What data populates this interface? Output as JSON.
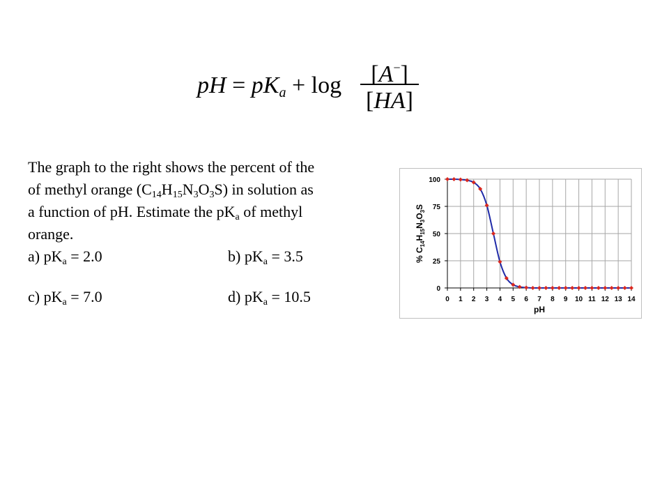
{
  "equation": {
    "lhs": "pH",
    "equals": "=",
    "pk": "pK",
    "pk_sub": "a",
    "plus": "+",
    "log": "log",
    "num_open": "[",
    "num_var": "A",
    "num_sup": "−",
    "num_close": "]",
    "den_open": "[",
    "den_var": "HA",
    "den_close": "]"
  },
  "question": {
    "l1": "The graph to the right shows the percent of the",
    "l2_a": "of methyl orange (C",
    "l2_s1": "14",
    "l2_b": "H",
    "l2_s2": "15",
    "l2_c": "N",
    "l2_s3": "3",
    "l2_d": "O",
    "l2_s4": "3",
    "l2_e": "S) in solution as",
    "l3_a": "a function of pH.   Estimate the pK",
    "l3_s": "a",
    "l3_b": " of methyl",
    "l4": "orange.",
    "options": {
      "a_pre": "a) pK",
      "a_sub": "a",
      "a_post": " = 2.0",
      "b_pre": "b) pK",
      "b_sub": "a",
      "b_post": " = 3.5",
      "c_pre": "c)   pK",
      "c_sub": "a",
      "c_post": " = 7.0",
      "d_pre": "d) pK",
      "d_sub": "a",
      "d_post": " = 10.5"
    }
  },
  "colors": {
    "curve": "#1f2aa8",
    "marker": "#d9281f",
    "grid": "#a6a6a6"
  },
  "chart_data": {
    "type": "line",
    "xlabel": "pH",
    "ylabel_parts": [
      "% C",
      "14",
      "H",
      "15",
      "N",
      "3",
      "O",
      "3",
      "S"
    ],
    "xlim": [
      0,
      14
    ],
    "ylim": [
      0,
      100
    ],
    "xticks": [
      0,
      1,
      2,
      3,
      4,
      5,
      6,
      7,
      8,
      9,
      10,
      11,
      12,
      13,
      14
    ],
    "yticks": [
      0,
      25,
      50,
      75,
      100
    ],
    "grid": true,
    "legend": "none",
    "series": [
      {
        "x": [
          0,
          0.5,
          1,
          1.5,
          2,
          2.5,
          3,
          3.5,
          4,
          4.5,
          5,
          5.5,
          6,
          6.5,
          7,
          7.5,
          8,
          8.5,
          9,
          9.5,
          10,
          10.5,
          11,
          11.5,
          12,
          12.5,
          13,
          13.5,
          14
        ],
        "y": [
          100,
          100,
          99.7,
          99,
          97,
          91,
          76,
          50,
          24,
          9,
          3,
          1,
          0.3,
          0,
          0,
          0,
          0,
          0,
          0,
          0,
          0,
          0,
          0,
          0,
          0,
          0,
          0,
          0,
          0
        ]
      }
    ]
  }
}
